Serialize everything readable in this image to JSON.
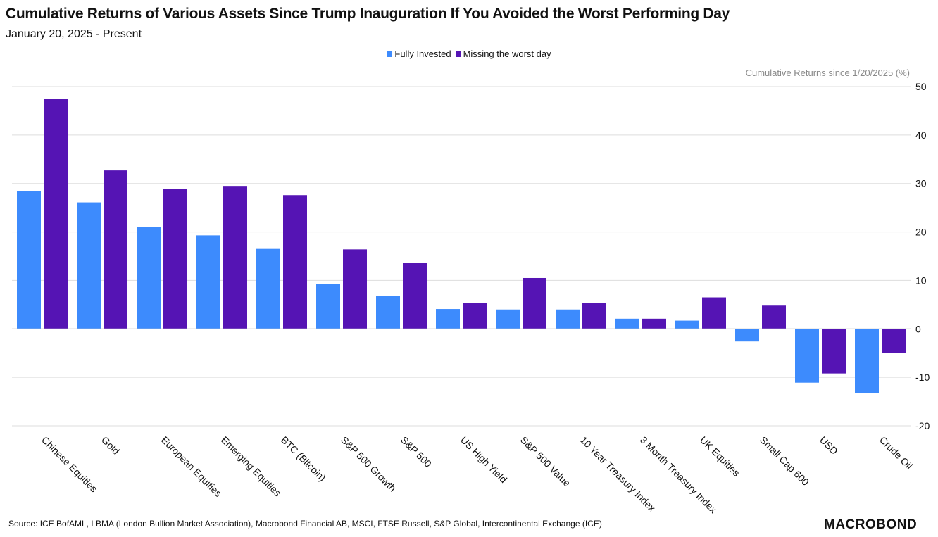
{
  "header": {
    "title": "Cumulative Returns of Various Assets Since Trump Inauguration If You Avoided the Worst Performing Day",
    "subtitle": "January 20, 2025 - Present"
  },
  "footer": {
    "source": "Source: ICE BofAML, LBMA (London Bullion Market Association), Macrobond Financial AB, MSCI, FTSE Russell, S&P Global, Intercontinental Exchange (ICE)",
    "logo_text": "MACROBOND"
  },
  "colors": {
    "fully_invested": "#3d8bfd",
    "missing_worst_day": "#5514b4",
    "grid": "#dddddd"
  },
  "chart_data": {
    "type": "bar",
    "title": "Cumulative Returns of Various Assets Since Trump Inauguration If You Avoided the Worst Performing Day",
    "subtitle": "January 20, 2025 - Present",
    "ylabel": "Cumulative Returns since 1/20/2025 (%)",
    "ylim": [
      -20,
      50
    ],
    "yticks": [
      50,
      40,
      30,
      20,
      10,
      0,
      -10,
      -20
    ],
    "grid": true,
    "legend_position": "top-center",
    "categories": [
      "Chinese Equities",
      "Gold",
      "European Equities",
      "Emerging Equities",
      "BTC (Bitcoin)",
      "S&P 500 Growth",
      "S&P 500",
      "US High Yield",
      "S&P 500 Value",
      "10 Year Treasury Index",
      "3 Month Treasury Index",
      "UK Equities",
      "Small Cap 600",
      "USD",
      "Crude Oil"
    ],
    "series": [
      {
        "name": "Fully Invested",
        "values": [
          28.4,
          26.1,
          21.0,
          19.3,
          16.5,
          9.3,
          6.8,
          4.1,
          4.0,
          4.0,
          2.1,
          1.7,
          -2.6,
          -11.1,
          -13.3
        ]
      },
      {
        "name": "Missing the worst day",
        "values": [
          47.4,
          32.7,
          28.9,
          29.5,
          27.6,
          16.4,
          13.6,
          5.4,
          10.5,
          5.4,
          2.1,
          6.5,
          4.8,
          -9.2,
          -5.0
        ]
      }
    ]
  }
}
